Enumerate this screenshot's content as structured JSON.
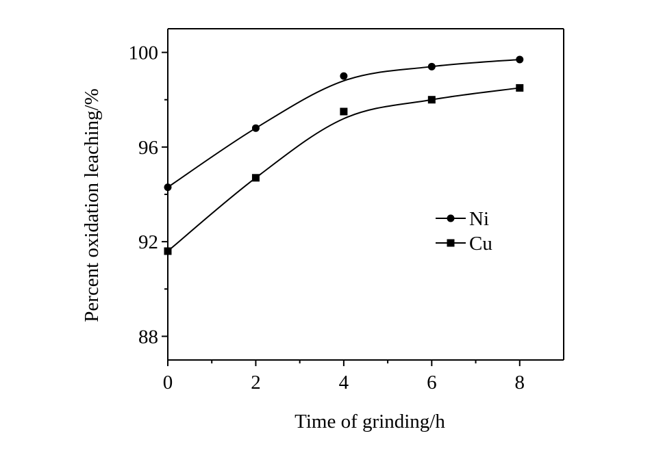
{
  "chart_data": {
    "type": "scatter",
    "title": "",
    "xlabel": "Time of grinding/h",
    "ylabel": "Percent oxidation leaching/%",
    "xlim": [
      0,
      9
    ],
    "ylim": [
      87,
      101
    ],
    "xticks": [
      "0",
      "2",
      "4",
      "6",
      "8"
    ],
    "yticks": [
      "88",
      "92",
      "96",
      "100"
    ],
    "x_tick_values": [
      0,
      2,
      4,
      6,
      8
    ],
    "y_tick_values": [
      88,
      92,
      96,
      100
    ],
    "x_minor_tick_values": [
      1,
      3,
      5,
      7
    ],
    "y_minor_tick_values": [
      90,
      94,
      98
    ],
    "legend_position": "center-right",
    "grid": false,
    "series": [
      {
        "name": "Ni",
        "marker": "circle",
        "x": [
          0,
          2,
          4,
          6,
          8
        ],
        "y": [
          94.3,
          96.8,
          99.0,
          99.4,
          99.7
        ],
        "curve_y": [
          94.3,
          96.8,
          98.8,
          99.4,
          99.7
        ]
      },
      {
        "name": "Cu",
        "marker": "square",
        "x": [
          0,
          2,
          4,
          6,
          8
        ],
        "y": [
          91.6,
          94.7,
          97.5,
          98.0,
          98.5
        ],
        "curve_y": [
          91.6,
          94.7,
          97.2,
          98.0,
          98.5
        ]
      }
    ],
    "colors": {
      "line": "#000000",
      "marker": "#000000"
    }
  }
}
